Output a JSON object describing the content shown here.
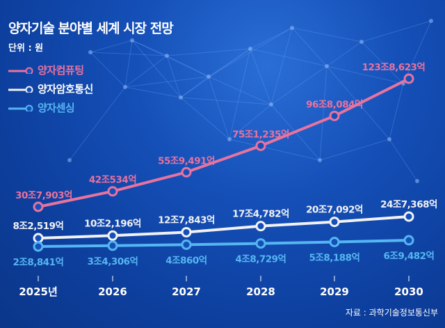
{
  "chart_data": {
    "type": "line",
    "title": "양자기술 분야별 세계 시장 전망",
    "unit_label": "단위 : 원",
    "categories": [
      "2025년",
      "2026",
      "2027",
      "2028",
      "2029",
      "2030"
    ],
    "series": [
      {
        "name": "양자컴퓨팅",
        "color": "#e8739f",
        "values_jo": [
          30.7903,
          42.0534,
          55.9491,
          75.1235,
          96.8084,
          123.8623
        ],
        "labels": [
          "30조7,903억",
          "42조534억",
          "55조9,491억",
          "75조1,235억",
          "96조8,084억",
          "123조8,623억"
        ]
      },
      {
        "name": "양자암호통신",
        "color": "#f2f2f5",
        "values_jo": [
          8.2519,
          10.2196,
          12.7843,
          17.4782,
          20.7092,
          24.7368
        ],
        "labels": [
          "8조2,519억",
          "10조2,196억",
          "12조7,843억",
          "17조4,782억",
          "20조7,092억",
          "24조7,368억"
        ]
      },
      {
        "name": "양자센싱",
        "color": "#55b6f2",
        "values_jo": [
          2.8841,
          3.4306,
          4.086,
          4.8729,
          5.8188,
          6.9482
        ],
        "labels": [
          "2조8,841억",
          "3조4,306억",
          "4조860억",
          "4조8,729억",
          "5조8,188억",
          "6조9,482억"
        ]
      }
    ],
    "legend_placement": "top-left",
    "grid": false,
    "source": "자료 : 과학기술정보통신부"
  }
}
